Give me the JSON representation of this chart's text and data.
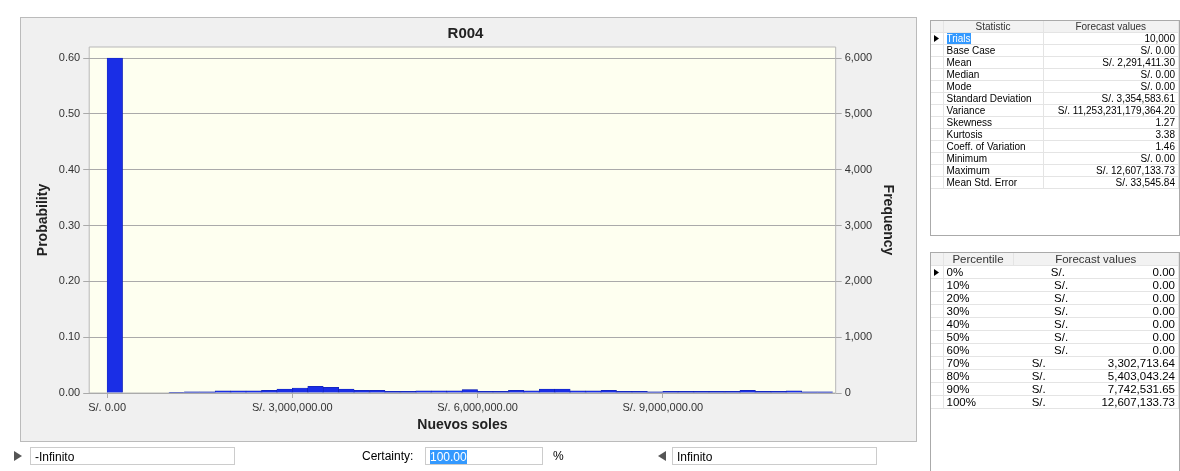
{
  "chart_data": [
    {
      "type": "histogram",
      "title": "R004",
      "xlabel": "Nuevos soles",
      "ylabel": "Probability",
      "y2label": "Frequency",
      "color": "#1a2ee6",
      "bins": [
        0,
        250000,
        500000,
        750000,
        1000000,
        1250000,
        1500000,
        1750000,
        2000000,
        2250000,
        2500000,
        2750000,
        3000000,
        3250000,
        3500000,
        3750000,
        4000000,
        4250000,
        4500000,
        4750000,
        5000000,
        5250000,
        5500000,
        5750000,
        6000000,
        6250000,
        6500000,
        6750000,
        7000000,
        7250000,
        7500000,
        7750000,
        8000000,
        8250000,
        8500000,
        8750000,
        9000000,
        9250000,
        9500000,
        9750000,
        10000000,
        10250000,
        10500000,
        10750000,
        11000000,
        11250000,
        11500000,
        11750000
      ],
      "values": [
        0.6,
        0,
        0,
        0,
        0.001,
        0.002,
        0.002,
        0.004,
        0.004,
        0.004,
        0.005,
        0.007,
        0.009,
        0.012,
        0.01,
        0.007,
        0.005,
        0.005,
        0.003,
        0.003,
        0.004,
        0.004,
        0.004,
        0.006,
        0.003,
        0.003,
        0.005,
        0.004,
        0.007,
        0.007,
        0.004,
        0.004,
        0.005,
        0.003,
        0.003,
        0.002,
        0.003,
        0.003,
        0.003,
        0.003,
        0.003,
        0.005,
        0.003,
        0.003,
        0.004,
        0.002,
        0.002
      ],
      "xlim": [
        -290000,
        11800000
      ],
      "xticks": [
        {
          "value": 0,
          "label": "S/. 0.00"
        },
        {
          "value": 3000000,
          "label": "S/. 3,000,000.00"
        },
        {
          "value": 6000000,
          "label": "S/. 6,000,000.00"
        },
        {
          "value": 9000000,
          "label": "S/. 9,000,000.00"
        }
      ],
      "ylim": [
        0,
        0.62
      ],
      "yticks": [
        {
          "value": 0,
          "label": "0.00"
        },
        {
          "value": 0.1,
          "label": "0.10"
        },
        {
          "value": 0.2,
          "label": "0.20"
        },
        {
          "value": 0.3,
          "label": "0.30"
        },
        {
          "value": 0.4,
          "label": "0.40"
        },
        {
          "value": 0.5,
          "label": "0.50"
        },
        {
          "value": 0.6,
          "label": "0.60"
        }
      ],
      "y2lim": [
        0,
        6200
      ],
      "y2ticks": [
        0,
        {
          "value": 1000,
          "label": "1,000"
        },
        {
          "value": 2000,
          "label": "2,000"
        },
        {
          "value": 3000,
          "label": "3,000"
        },
        {
          "value": 4000,
          "label": "4,000"
        },
        {
          "value": 5000,
          "label": "5,000"
        },
        {
          "value": 6000,
          "label": "6,000"
        }
      ],
      "grid": "y",
      "annotations": [
        "-Infinito",
        "Certainty:",
        "100.00",
        "%",
        "Infinito"
      ]
    },
    {
      "type": "other",
      "annotations": [
        "Statistic",
        "Forecast values",
        "Trials",
        "10,000",
        "Base Case",
        "S/. 0.00",
        "Mean",
        "S/. 2,291,411.30",
        "Median",
        "S/. 0.00",
        "Mode",
        "S/. 0.00",
        "Standard Deviation",
        "S/. 3,354,583.61",
        "Variance",
        "S/. 11,253,231,179,364.20",
        "Skewness",
        "1.27",
        "Kurtosis",
        "3.38",
        "Coeff. of Variation",
        "1.46",
        "Minimum",
        "S/. 0.00",
        "Maximum",
        "S/. 12,607,133.73",
        "Mean Std. Error",
        "S/. 33,545.84"
      ]
    },
    {
      "type": "other",
      "annotations": [
        "Percentile",
        "Forecast values",
        "0%",
        "S/. 0.00",
        "10%",
        "S/. 0.00",
        "20%",
        "S/. 0.00",
        "30%",
        "S/. 0.00",
        "40%",
        "S/. 0.00",
        "50%",
        "S/. 0.00",
        "60%",
        "S/. 0.00",
        "70%",
        "S/. 3,302,713.64",
        "80%",
        "S/. 5,403,043.24",
        "90%",
        "S/. 7,742,531.65",
        "100%",
        "S/. 12,607,133.73"
      ]
    }
  ]
}
